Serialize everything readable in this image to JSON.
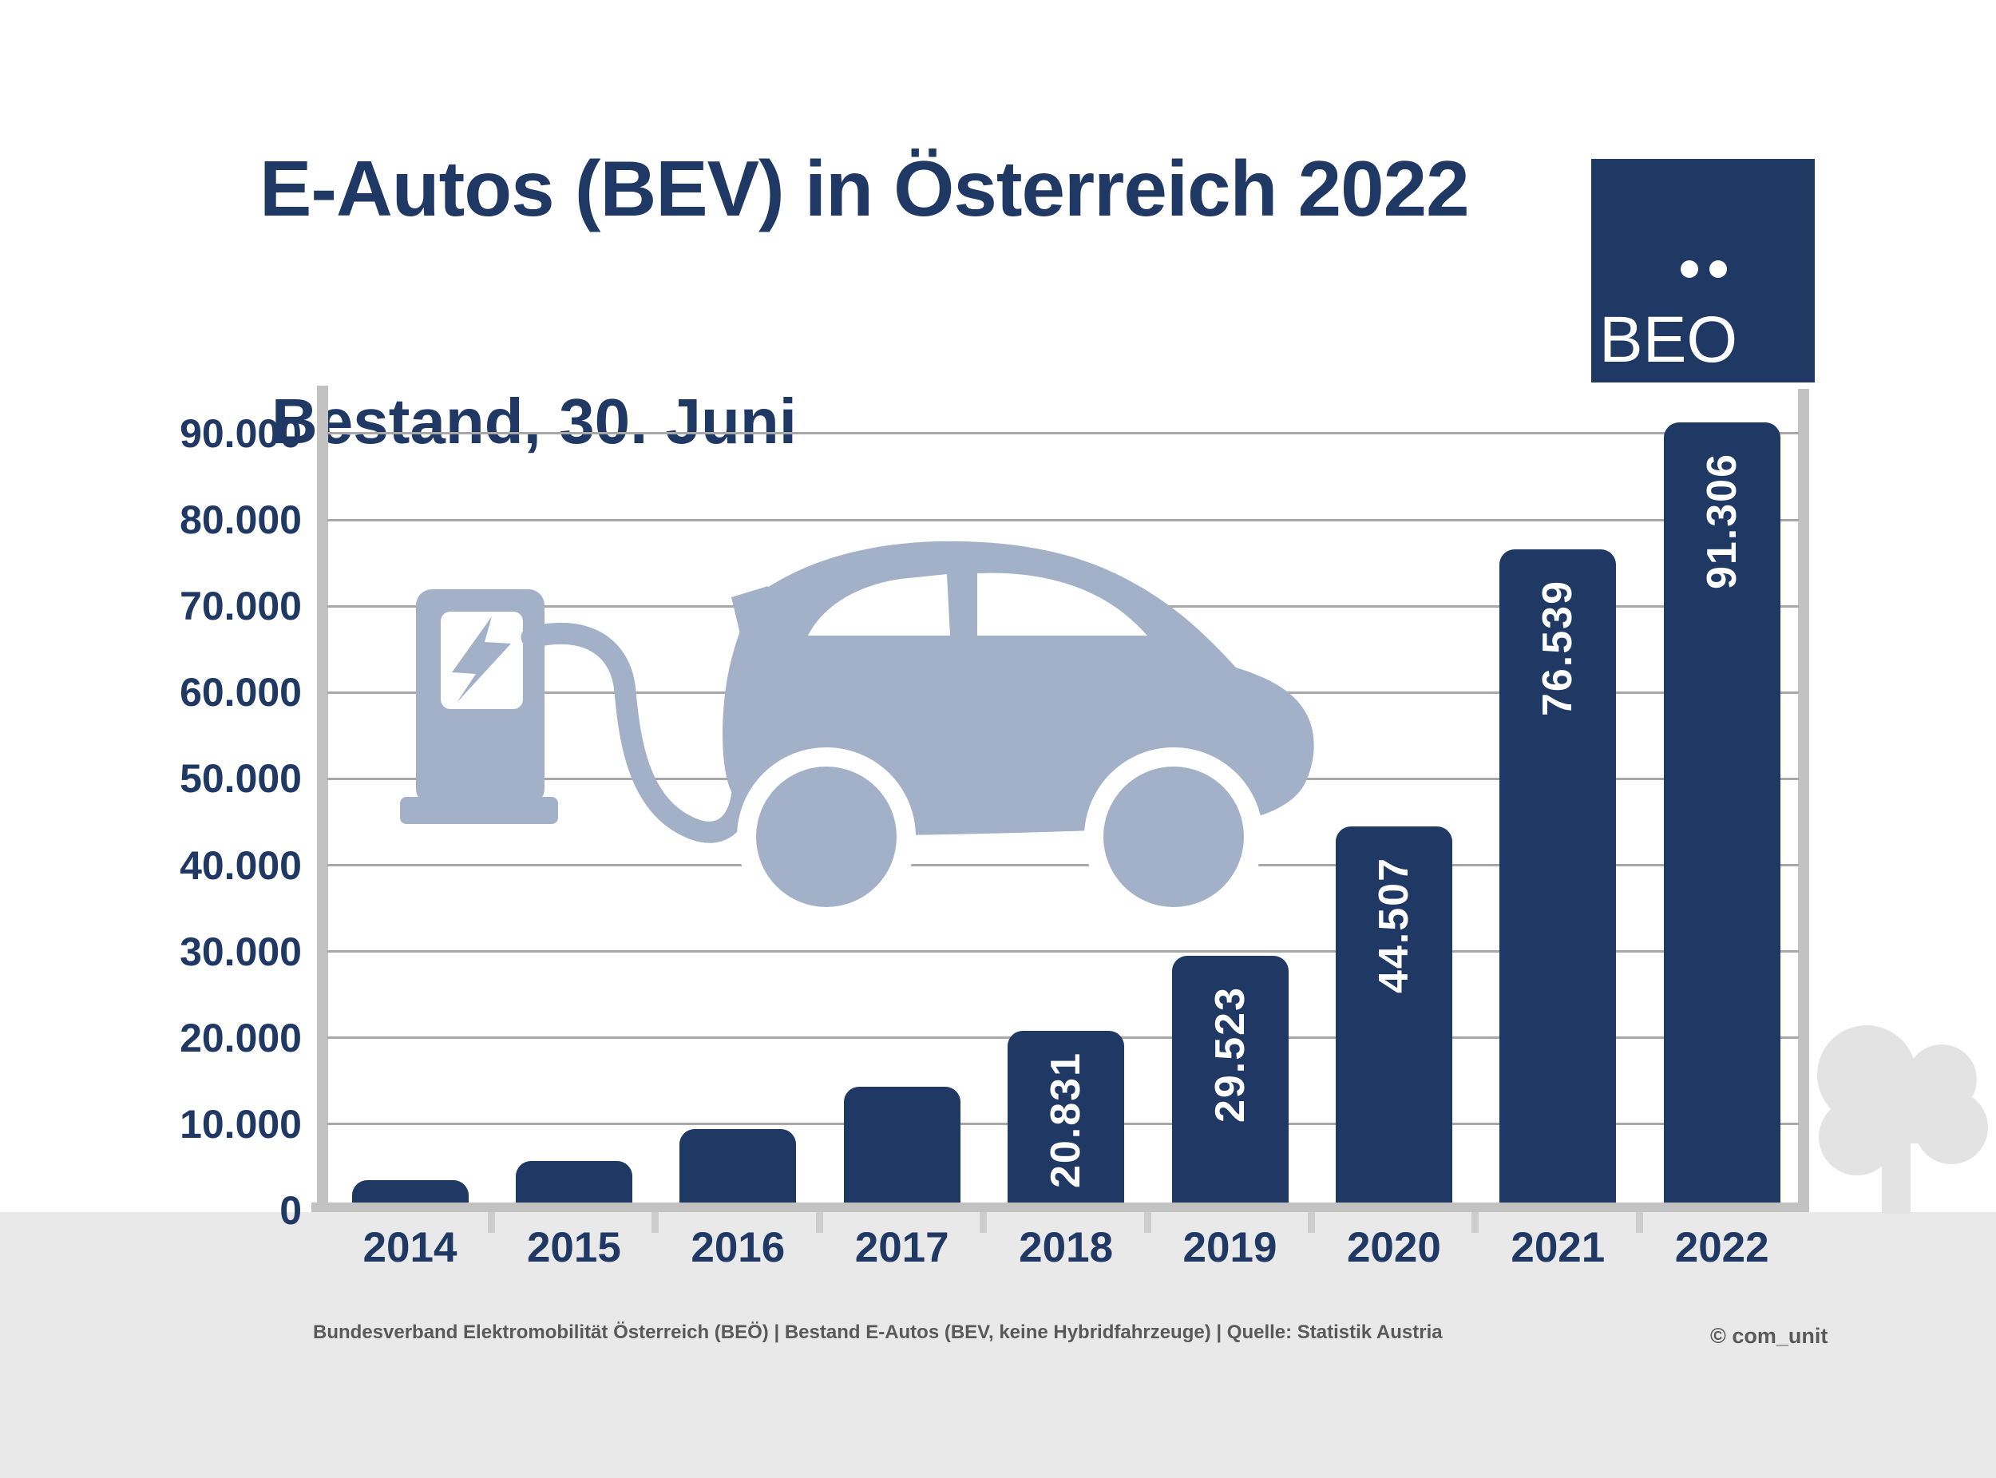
{
  "header": {
    "title": "E-Autos (BEV) in Österreich 2022",
    "subtitle": "Bestand, 30. Juni"
  },
  "logo": {
    "wordmark": "BEO",
    "umlaut_dots": 2,
    "background_color": "#1F3864",
    "text_color": "#FFFFFF"
  },
  "chart_data": {
    "type": "bar",
    "title": "E-Autos (BEV) in Österreich 2022",
    "subtitle": "Bestand, 30. Juni",
    "categories": [
      "2014",
      "2015",
      "2016",
      "2017",
      "2018",
      "2019",
      "2020",
      "2021",
      "2022"
    ],
    "values": [
      3500,
      5700,
      9400,
      14300,
      20831,
      29523,
      44507,
      76539,
      91306
    ],
    "bar_labels": [
      null,
      null,
      null,
      null,
      "20.831",
      "29.523",
      "44.507",
      "76.539",
      "91.306"
    ],
    "y_ticks": [
      {
        "value": 90000,
        "label": "90.000"
      },
      {
        "value": 80000,
        "label": "80.000"
      },
      {
        "value": 70000,
        "label": "70.000"
      },
      {
        "value": 60000,
        "label": "60.000"
      },
      {
        "value": 50000,
        "label": "50.000"
      },
      {
        "value": 40000,
        "label": "40.000"
      },
      {
        "value": 30000,
        "label": "30.000"
      },
      {
        "value": 20000,
        "label": "20.000"
      },
      {
        "value": 10000,
        "label": "10.000"
      },
      {
        "value": 0,
        "label": "0"
      }
    ],
    "ylim": [
      0,
      95000
    ],
    "xlabel": "",
    "ylabel": "",
    "grid": "horizontal",
    "legend": "none",
    "bar_color": "#1F3864",
    "bar_label_color": "#FFFFFF",
    "note": "values for 2014-2017 estimated from bar heights (not labeled in figure)"
  },
  "footer": {
    "source_line": "Bundesverband Elektromobilität Österreich (BEÖ) | Bestand E-Autos (BEV, keine Hybridfahrzeuge) | Quelle: Statistik Austria",
    "copyright": "© com_unit"
  },
  "colors": {
    "accent_navy": "#1F3864",
    "illustration_blue_gray": "#A2B0C8",
    "axis_gray": "#C2C2C2",
    "gridline_gray": "#A8A8A8",
    "bottom_band_gray": "#E9E9E9",
    "tree_gray": "#E3E3E3",
    "footer_text_gray": "#595959"
  }
}
